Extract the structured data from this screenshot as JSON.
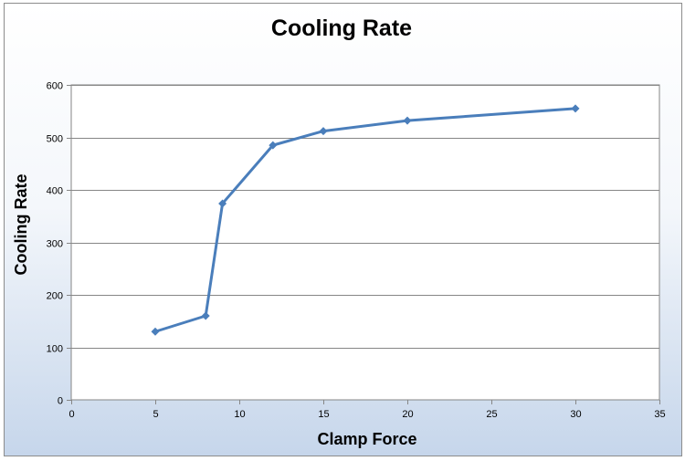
{
  "chart_data": {
    "type": "line",
    "title": "Cooling Rate",
    "xlabel": "Clamp Force",
    "ylabel": "Cooling Rate",
    "xlim": [
      0,
      35
    ],
    "ylim": [
      0,
      600
    ],
    "xticks": [
      0,
      5,
      10,
      15,
      20,
      25,
      30,
      35
    ],
    "yticks": [
      0,
      100,
      200,
      300,
      400,
      500,
      600
    ],
    "grid": "horizontal major",
    "legend": "none",
    "series": [
      {
        "color": "#4a7ebb",
        "marker": "diamond",
        "x": [
          5,
          8,
          9,
          12,
          15,
          20,
          30
        ],
        "y": [
          130,
          160,
          374,
          485,
          512,
          532,
          555
        ]
      }
    ]
  }
}
